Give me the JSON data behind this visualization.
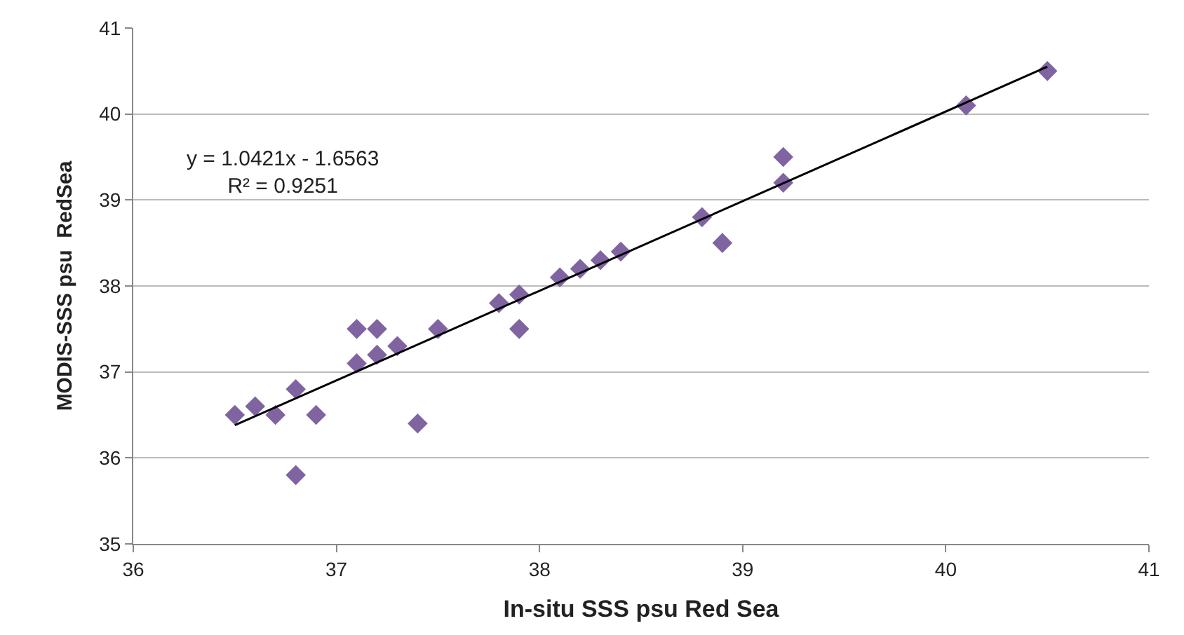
{
  "chart_data": {
    "type": "scatter",
    "xlabel": "In-situ SSS psu Red Sea",
    "ylabel": "MODIS-SSS psu  RedSea",
    "xlim": [
      36,
      41
    ],
    "xticks": [
      36,
      37,
      38,
      39,
      40,
      41
    ],
    "ylim": [
      35,
      41
    ],
    "yticks": [
      35,
      36,
      37,
      38,
      39,
      40,
      41
    ],
    "grid": "y",
    "marker": "diamond",
    "annotations": [
      "y = 1.0421x - 1.6563",
      "R² = 0.9251"
    ],
    "series": [
      {
        "color": "#8064a2",
        "x": [
          36.5,
          36.6,
          36.7,
          36.8,
          36.8,
          36.9,
          37.1,
          37.1,
          37.2,
          37.2,
          37.3,
          37.4,
          37.5,
          37.8,
          37.9,
          37.9,
          38.1,
          38.2,
          38.3,
          38.4,
          38.8,
          38.9,
          39.2,
          39.2,
          40.1,
          40.5
        ],
        "values": [
          36.5,
          36.6,
          36.5,
          36.8,
          35.8,
          36.5,
          37.5,
          37.1,
          37.5,
          37.2,
          37.3,
          36.4,
          37.5,
          37.8,
          37.9,
          37.5,
          38.1,
          38.2,
          38.3,
          38.4,
          38.8,
          38.5,
          39.5,
          39.2,
          40.1,
          40.5
        ]
      },
      {
        "type": "line",
        "color": "#000000",
        "marker": "none",
        "x": [
          36.5,
          40.5
        ],
        "values": [
          36.38,
          40.55
        ]
      }
    ]
  }
}
